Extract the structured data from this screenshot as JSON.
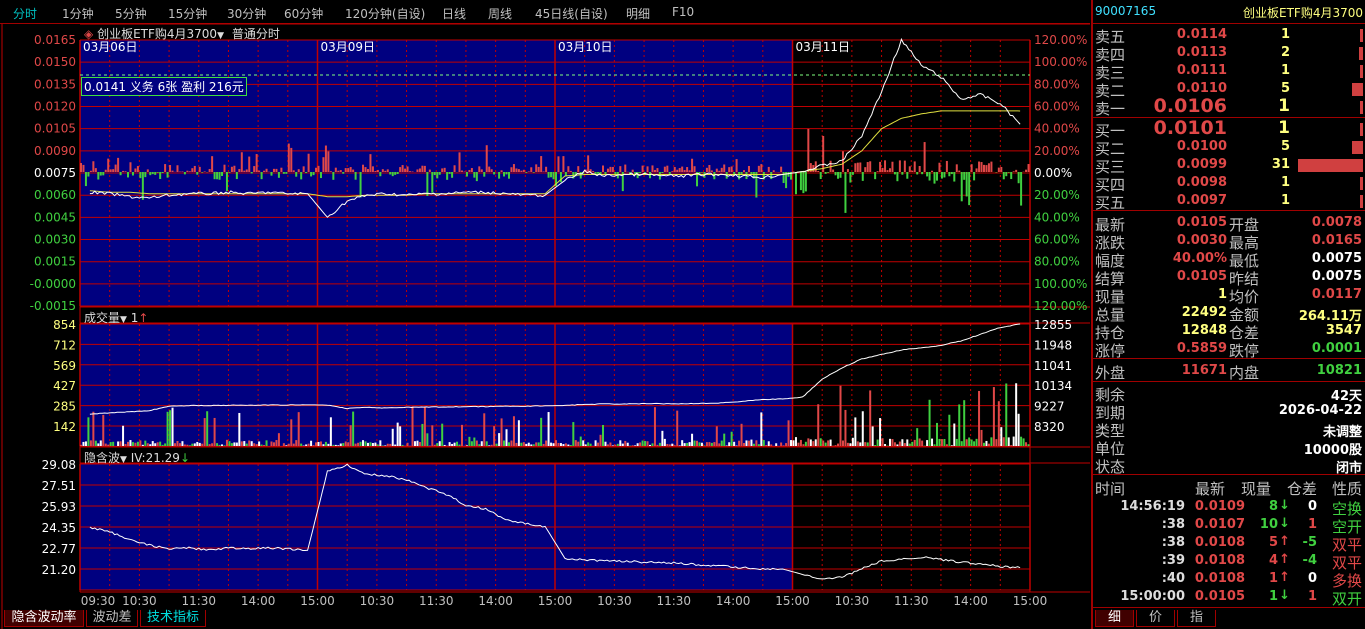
{
  "menu": [
    "分时",
    "1分钟",
    "5分钟",
    "15分钟",
    "30分钟",
    "60分钟",
    "120分钟(自设)",
    "日线",
    "周线",
    "45日线(自设)",
    "明细",
    "F10"
  ],
  "active_menu": "分时",
  "chart_header": {
    "title": "创业板ETF购4月3700",
    "mode": "普通分时",
    "dropdown_icon": "caret-down"
  },
  "dates": [
    "03月06日",
    "03月09日",
    "03月10日",
    "03月11日"
  ],
  "position_box": "0.0141 义务  6张  盈利  216元",
  "price_axis_left": [
    "0.0165",
    "0.0150",
    "0.0135",
    "0.0120",
    "0.0105",
    "0.0090",
    "0.0075",
    "0.0060",
    "0.0045",
    "0.0030",
    "0.0015",
    "-0.0000",
    "-0.0015"
  ],
  "price_axis_right": [
    "120.00%",
    "100.00%",
    "80.00%",
    "60.00%",
    "40.00%",
    "20.00%",
    "0.00%",
    "20.00%",
    "40.00%",
    "60.00%",
    "80.00%",
    "100.00%",
    "120.00%"
  ],
  "volume_header": {
    "title": "成交量",
    "value": "1",
    "arrow": "↑"
  },
  "volume_axis_left": [
    "854",
    "712",
    "569",
    "427",
    "285",
    "142"
  ],
  "volume_axis_right": [
    "12855",
    "11948",
    "11041",
    "10134",
    "9227",
    "8320"
  ],
  "iv_header": {
    "title": "隐含波",
    "value": "IV:21.29",
    "arrow": "↓"
  },
  "iv_axis_left": [
    "29.08",
    "27.51",
    "25.93",
    "24.35",
    "22.77",
    "21.20"
  ],
  "time_axis": [
    "09:30",
    "10:30",
    "11:30",
    "14:00",
    "15:00",
    "10:30",
    "11:30",
    "14:00",
    "15:00",
    "10:30",
    "11:30",
    "14:00",
    "15:00",
    "10:30",
    "11:30",
    "14:00",
    "15:00"
  ],
  "bottom_tabs": [
    "隐含波动率",
    "波动差",
    "技术指标"
  ],
  "colors": {
    "grid": "#c00000",
    "panel_bg": "#000080",
    "up": "#e04848",
    "down": "#40d040",
    "price_line": "#ffffff",
    "avg_line": "#e0e040"
  },
  "chart_data": {
    "type": "line",
    "price": [
      0.0062,
      0.0061,
      0.0059,
      0.0058,
      0.006,
      0.0061,
      0.0061,
      0.0062,
      0.0061,
      0.0062,
      0.0061,
      0.0061,
      0.0045,
      0.0056,
      0.006,
      0.0061,
      0.006,
      0.0061,
      0.0061,
      0.0062,
      0.0062,
      0.0061,
      0.006,
      0.006,
      0.007,
      0.0076,
      0.0073,
      0.0074,
      0.0074,
      0.0073,
      0.0073,
      0.0074,
      0.0074,
      0.0073,
      0.0072,
      0.0074,
      0.0076,
      0.008,
      0.0083,
      0.01,
      0.013,
      0.0165,
      0.0148,
      0.014,
      0.0125,
      0.0128,
      0.0122,
      0.0108
    ],
    "avg_price": [
      0.0063,
      0.0062,
      0.0062,
      0.0061,
      0.0061,
      0.0061,
      0.0061,
      0.0061,
      0.0061,
      0.0061,
      0.0061,
      0.0061,
      0.0059,
      0.0059,
      0.006,
      0.006,
      0.006,
      0.0061,
      0.0061,
      0.0061,
      0.0061,
      0.0061,
      0.0061,
      0.0061,
      0.0073,
      0.0074,
      0.0074,
      0.0074,
      0.0074,
      0.0074,
      0.0074,
      0.0074,
      0.0074,
      0.0074,
      0.0074,
      0.0074,
      0.0076,
      0.0078,
      0.0081,
      0.009,
      0.0105,
      0.0112,
      0.0115,
      0.0117,
      0.0117,
      0.0117,
      0.0117,
      0.0117
    ],
    "open_interest": [
      8850,
      8900,
      8950,
      9000,
      9200,
      9230,
      9230,
      9240,
      9240,
      9250,
      9250,
      9260,
      9250,
      9100,
      9150,
      9120,
      9150,
      9160,
      9170,
      9180,
      9180,
      9200,
      9200,
      9220,
      9230,
      9280,
      9300,
      9300,
      9310,
      9310,
      9310,
      9330,
      9350,
      9420,
      9500,
      9520,
      9600,
      10400,
      10900,
      11300,
      11500,
      11700,
      11800,
      11900,
      12100,
      12400,
      12700,
      12855
    ],
    "iv": [
      24.3,
      24.0,
      23.4,
      23.0,
      22.7,
      22.8,
      22.6,
      22.8,
      22.7,
      22.8,
      22.7,
      22.6,
      28.5,
      29.0,
      28.3,
      28.2,
      27.9,
      27.3,
      26.8,
      26.0,
      25.7,
      24.9,
      24.6,
      24.4,
      22.0,
      21.9,
      21.8,
      21.8,
      21.7,
      21.7,
      21.6,
      21.5,
      21.4,
      21.3,
      21.2,
      21.2,
      20.8,
      20.4,
      20.6,
      21.2,
      21.8,
      21.9,
      22.1,
      21.9,
      21.7,
      21.6,
      21.4,
      21.3
    ]
  },
  "quote": {
    "code": "90007165",
    "name": "创业板ETF购4月3700",
    "asks": [
      {
        "label": "卖五",
        "price": "0.0114",
        "vol": "1",
        "bar": 1
      },
      {
        "label": "卖四",
        "price": "0.0113",
        "vol": "2",
        "bar": 2
      },
      {
        "label": "卖三",
        "price": "0.0111",
        "vol": "1",
        "bar": 1
      },
      {
        "label": "卖二",
        "price": "0.0110",
        "vol": "5",
        "bar": 5
      },
      {
        "label": "卖一",
        "price": "0.0106",
        "vol": "1",
        "bar": 1
      }
    ],
    "bids": [
      {
        "label": "买一",
        "price": "0.0101",
        "vol": "1",
        "bar": 1
      },
      {
        "label": "买二",
        "price": "0.0100",
        "vol": "5",
        "bar": 5
      },
      {
        "label": "买三",
        "price": "0.0099",
        "vol": "31",
        "bar": 31
      },
      {
        "label": "买四",
        "price": "0.0098",
        "vol": "1",
        "bar": 1
      },
      {
        "label": "买五",
        "price": "0.0097",
        "vol": "1",
        "bar": 1
      }
    ],
    "stats": [
      {
        "l1": "最新",
        "v1": "0.0105",
        "c1": "red",
        "l2": "开盘",
        "v2": "0.0078",
        "c2": "red"
      },
      {
        "l1": "涨跌",
        "v1": "0.0030",
        "c1": "red",
        "l2": "最高",
        "v2": "0.0165",
        "c2": "red"
      },
      {
        "l1": "幅度",
        "v1": "40.00%",
        "c1": "red",
        "l2": "最低",
        "v2": "0.0075",
        "c2": "wht"
      },
      {
        "l1": "结算",
        "v1": "0.0105",
        "c1": "red",
        "l2": "昨结",
        "v2": "0.0075",
        "c2": "wht"
      },
      {
        "l1": "现量",
        "v1": "1",
        "c1": "yel",
        "l2": "均价",
        "v2": "0.0117",
        "c2": "red"
      },
      {
        "l1": "总量",
        "v1": "22492",
        "c1": "yel",
        "l2": "金额",
        "v2": "264.11万",
        "c2": "yel"
      },
      {
        "l1": "持仓",
        "v1": "12848",
        "c1": "yel",
        "l2": "仓差",
        "v2": "3547",
        "c2": "yel"
      },
      {
        "l1": "涨停",
        "v1": "0.5859",
        "c1": "red",
        "l2": "跌停",
        "v2": "0.0001",
        "c2": "grn"
      }
    ],
    "outer": {
      "label": "外盘",
      "value": "11671",
      "label2": "内盘",
      "value2": "10821"
    },
    "info": [
      {
        "l": "剩余",
        "v": "42天"
      },
      {
        "l": "到期",
        "v": "2026-04-22"
      },
      {
        "l": "类型",
        "v": "未调整"
      },
      {
        "l": "单位",
        "v": "10000股"
      },
      {
        "l": "状态",
        "v": "闭市"
      }
    ],
    "trade_headers": [
      "时间",
      "最新",
      "现量",
      "仓差",
      "性质"
    ],
    "trades": [
      {
        "t": "14:56:19",
        "p": "0.0109",
        "v": "8",
        "dir": "↓",
        "oi": "0",
        "oic": "wht",
        "n": "空换",
        "nc": "grn"
      },
      {
        "t": ":38",
        "p": "0.0107",
        "v": "10",
        "dir": "↓",
        "oi": "1",
        "oic": "red",
        "n": "空开",
        "nc": "grn"
      },
      {
        "t": ":38",
        "p": "0.0108",
        "v": "5",
        "dir": "↑",
        "oi": "-5",
        "oic": "grn",
        "n": "双平",
        "nc": "red"
      },
      {
        "t": ":39",
        "p": "0.0108",
        "v": "4",
        "dir": "↑",
        "oi": "-4",
        "oic": "grn",
        "n": "双平",
        "nc": "red"
      },
      {
        "t": ":40",
        "p": "0.0108",
        "v": "1",
        "dir": "↑",
        "oi": "0",
        "oic": "wht",
        "n": "多换",
        "nc": "red"
      },
      {
        "t": "15:00:00",
        "p": "0.0105",
        "v": "1",
        "dir": "↓",
        "oi": "1",
        "oic": "red",
        "n": "双开",
        "nc": "grn"
      }
    ],
    "tabs": [
      "细",
      "价",
      "指"
    ]
  }
}
